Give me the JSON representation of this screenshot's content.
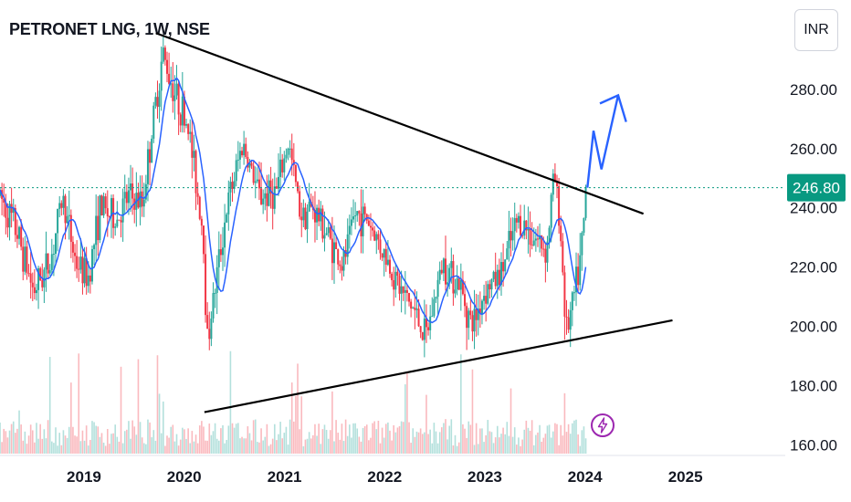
{
  "header": {
    "title": "PETRONET LNG, 1W, NSE",
    "currency": "INR"
  },
  "colors": {
    "up": "#26a69a",
    "down": "#f23645",
    "ma": "#2962ff",
    "trendline": "#000000",
    "projection": "#2962ff",
    "price_label_bg": "#089981",
    "flash": "#9c27b0"
  },
  "chart_data": {
    "type": "candlestick",
    "title": "PETRONET LNG, 1W, NSE",
    "currency": "INR",
    "last_price": 246.8,
    "price_label": "246.80",
    "ylim": [
      157,
      304
    ],
    "xlim": [
      "2018-03-01",
      "2025-12-31"
    ],
    "y_ticks": [
      "160.00",
      "180.00",
      "200.00",
      "220.00",
      "240.00",
      "260.00",
      "280.00"
    ],
    "x_ticks": [
      "2019",
      "2020",
      "2021",
      "2022",
      "2023",
      "2024",
      "2025"
    ],
    "price_path": [
      [
        "2018-03-01",
        244
      ],
      [
        "2018-05-01",
        232
      ],
      [
        "2018-07-01",
        212
      ],
      [
        "2018-09-01",
        222
      ],
      [
        "2018-10-15",
        244
      ],
      [
        "2018-12-01",
        222
      ],
      [
        "2019-01-15",
        216
      ],
      [
        "2019-03-01",
        240
      ],
      [
        "2019-05-01",
        236
      ],
      [
        "2019-06-15",
        244
      ],
      [
        "2019-08-01",
        241
      ],
      [
        "2019-09-15",
        272
      ],
      [
        "2019-10-15",
        292
      ],
      [
        "2019-12-01",
        278
      ],
      [
        "2020-01-15",
        268
      ],
      [
        "2020-03-10",
        232
      ],
      [
        "2020-03-25",
        195
      ],
      [
        "2020-04-15",
        208
      ],
      [
        "2020-06-01",
        238
      ],
      [
        "2020-08-01",
        262
      ],
      [
        "2020-10-01",
        244
      ],
      [
        "2020-12-01",
        245
      ],
      [
        "2021-01-15",
        262
      ],
      [
        "2021-03-01",
        238
      ],
      [
        "2021-04-15",
        240
      ],
      [
        "2021-06-01",
        232
      ],
      [
        "2021-08-01",
        220
      ],
      [
        "2021-09-15",
        238
      ],
      [
        "2021-11-01",
        236
      ],
      [
        "2022-01-01",
        224
      ],
      [
        "2022-03-01",
        212
      ],
      [
        "2022-04-15",
        206
      ],
      [
        "2022-06-01",
        196
      ],
      [
        "2022-08-01",
        222
      ],
      [
        "2022-10-01",
        214
      ],
      [
        "2022-11-15",
        200
      ],
      [
        "2023-01-01",
        212
      ],
      [
        "2023-03-01",
        218
      ],
      [
        "2023-05-01",
        236
      ],
      [
        "2023-07-01",
        230
      ],
      [
        "2023-08-15",
        226
      ],
      [
        "2023-09-10",
        252
      ],
      [
        "2023-10-01",
        236
      ],
      [
        "2023-10-25",
        198
      ],
      [
        "2023-11-15",
        206
      ],
      [
        "2023-12-15",
        222
      ],
      [
        "2024-01-10",
        246.8
      ]
    ],
    "trendlines": [
      {
        "name": "upper",
        "start": [
          "2019-09-20",
          299
        ],
        "end": [
          "2024-08-01",
          238
        ]
      },
      {
        "name": "lower",
        "start": [
          "2020-03-15",
          171
        ],
        "end": [
          "2024-11-15",
          202
        ]
      }
    ],
    "projection": [
      [
        "2024-01-10",
        246.8
      ],
      [
        "2024-02-01",
        266
      ],
      [
        "2024-03-01",
        253
      ],
      [
        "2024-05-01",
        278
      ],
      [
        "2024-05-30",
        269
      ]
    ],
    "last_price_line": 246.8,
    "grid": false,
    "volume_panel": true
  }
}
